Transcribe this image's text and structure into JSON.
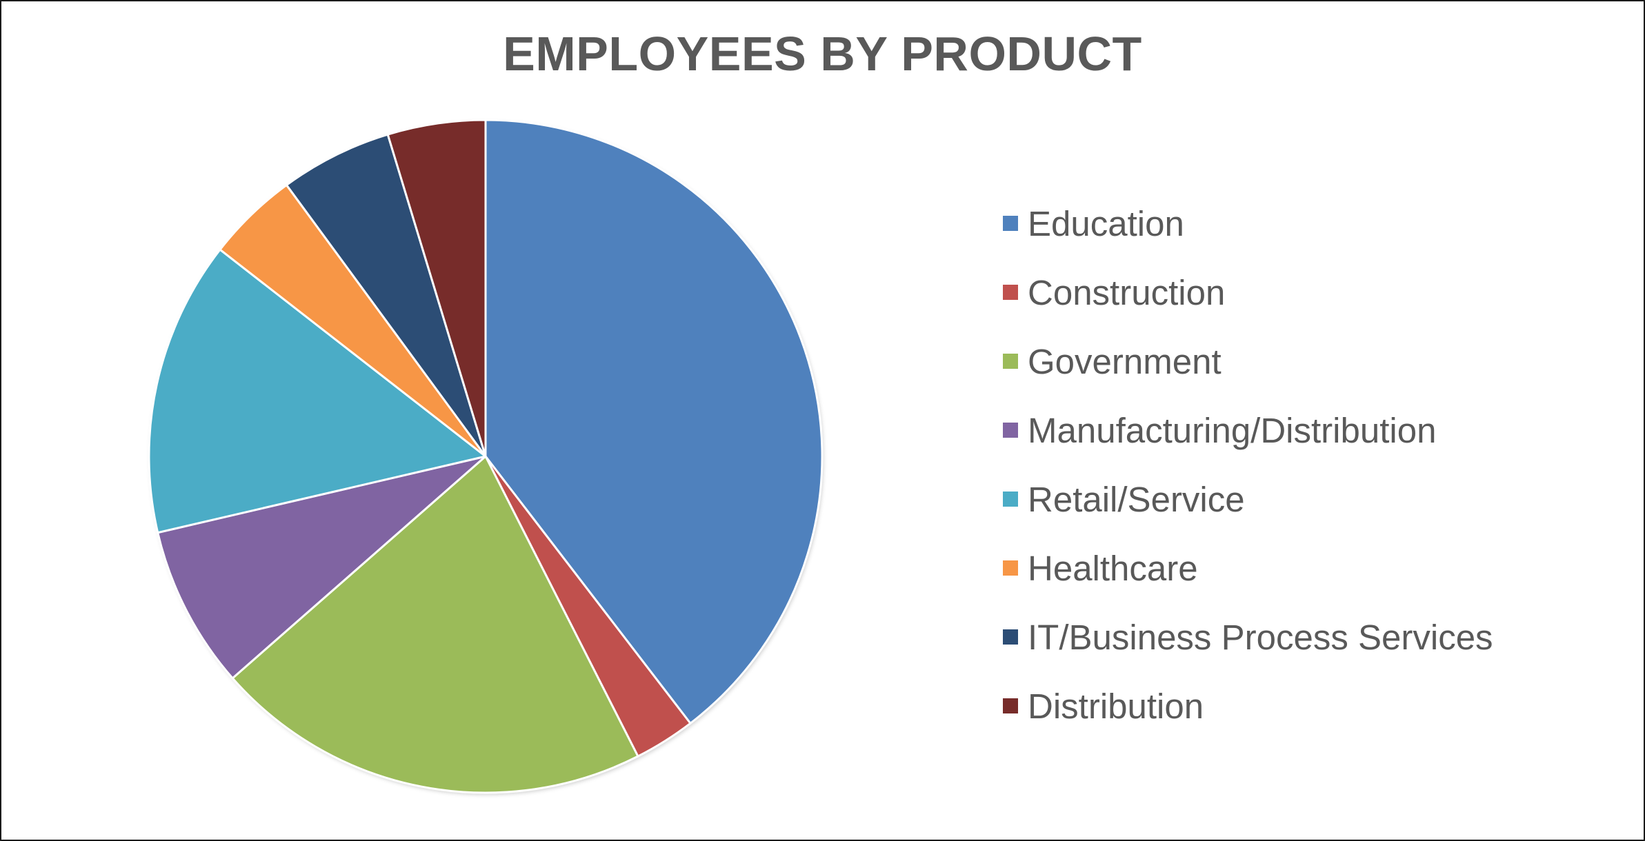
{
  "chart_data": {
    "type": "pie",
    "title": "EMPLOYEES BY PRODUCT",
    "start_angle_deg": 0,
    "direction": "clockwise",
    "legend_position": "right",
    "slices": [
      {
        "label": "Education",
        "value": 40.5,
        "color": "#4F81BD"
      },
      {
        "label": "Construction",
        "value": 3.0,
        "color": "#C0504D"
      },
      {
        "label": "Government",
        "value": 21.5,
        "color": "#9BBB59"
      },
      {
        "label": "Manufacturing/Distribution",
        "value": 8.0,
        "color": "#8064A2"
      },
      {
        "label": "Retail/Service",
        "value": 14.5,
        "color": "#4BACC6"
      },
      {
        "label": "Healthcare",
        "value": 4.5,
        "color": "#F79646"
      },
      {
        "label": "IT/Business Process Services",
        "value": 5.5,
        "color": "#2C4D75"
      },
      {
        "label": "Distribution",
        "value": 4.8,
        "color": "#772C2A"
      }
    ]
  }
}
